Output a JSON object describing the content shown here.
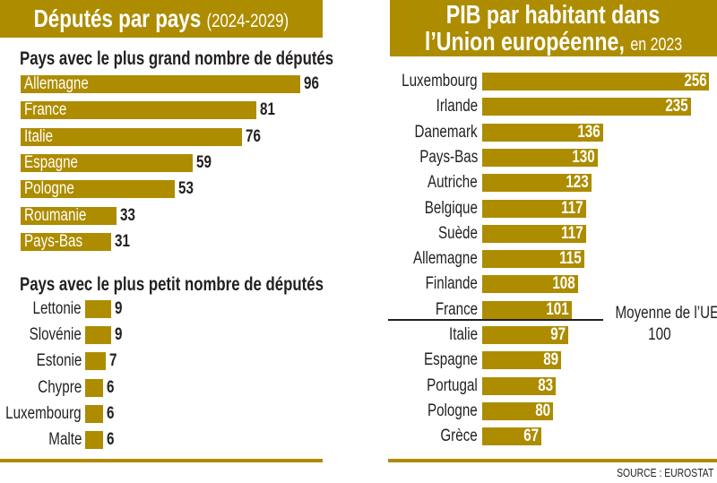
{
  "chart_data": [
    {
      "type": "bar",
      "orientation": "horizontal",
      "title": "Députés par pays",
      "title_suffix": "(2024-2029)",
      "panels": [
        {
          "subtitle": "Pays avec le plus grand nombre de députés",
          "categories": [
            "Allemagne",
            "France",
            "Italie",
            "Espagne",
            "Pologne",
            "Roumanie",
            "Pays-Bas"
          ],
          "values": [
            96,
            81,
            76,
            59,
            53,
            33,
            31
          ]
        },
        {
          "subtitle": "Pays avec le plus petit nombre de députés",
          "categories": [
            "Lettonie",
            "Slovénie",
            "Estonie",
            "Chypre",
            "Luxembourg",
            "Malte"
          ],
          "values": [
            9,
            9,
            7,
            6,
            6,
            6
          ]
        }
      ],
      "color": "#ad8c00"
    },
    {
      "type": "bar",
      "orientation": "horizontal",
      "title_line1": "PIB par habitant dans",
      "title_line2": "l’Union européenne,",
      "title_suffix": "en 2023",
      "categories": [
        "Luxembourg",
        "Irlande",
        "Danemark",
        "Pays-Bas",
        "Autriche",
        "Belgique",
        "Suède",
        "Allemagne",
        "Finlande",
        "France",
        "Italie",
        "Espagne",
        "Portugal",
        "Pologne",
        "Grèce"
      ],
      "values": [
        256,
        235,
        136,
        130,
        123,
        117,
        117,
        115,
        108,
        101,
        97,
        89,
        83,
        80,
        67
      ],
      "reference_line": {
        "label": "Moyenne de l’UE",
        "value": 100,
        "value_label": "100"
      },
      "color": "#ad8c00"
    }
  ],
  "source": "SOURCE : EUROSTAT"
}
